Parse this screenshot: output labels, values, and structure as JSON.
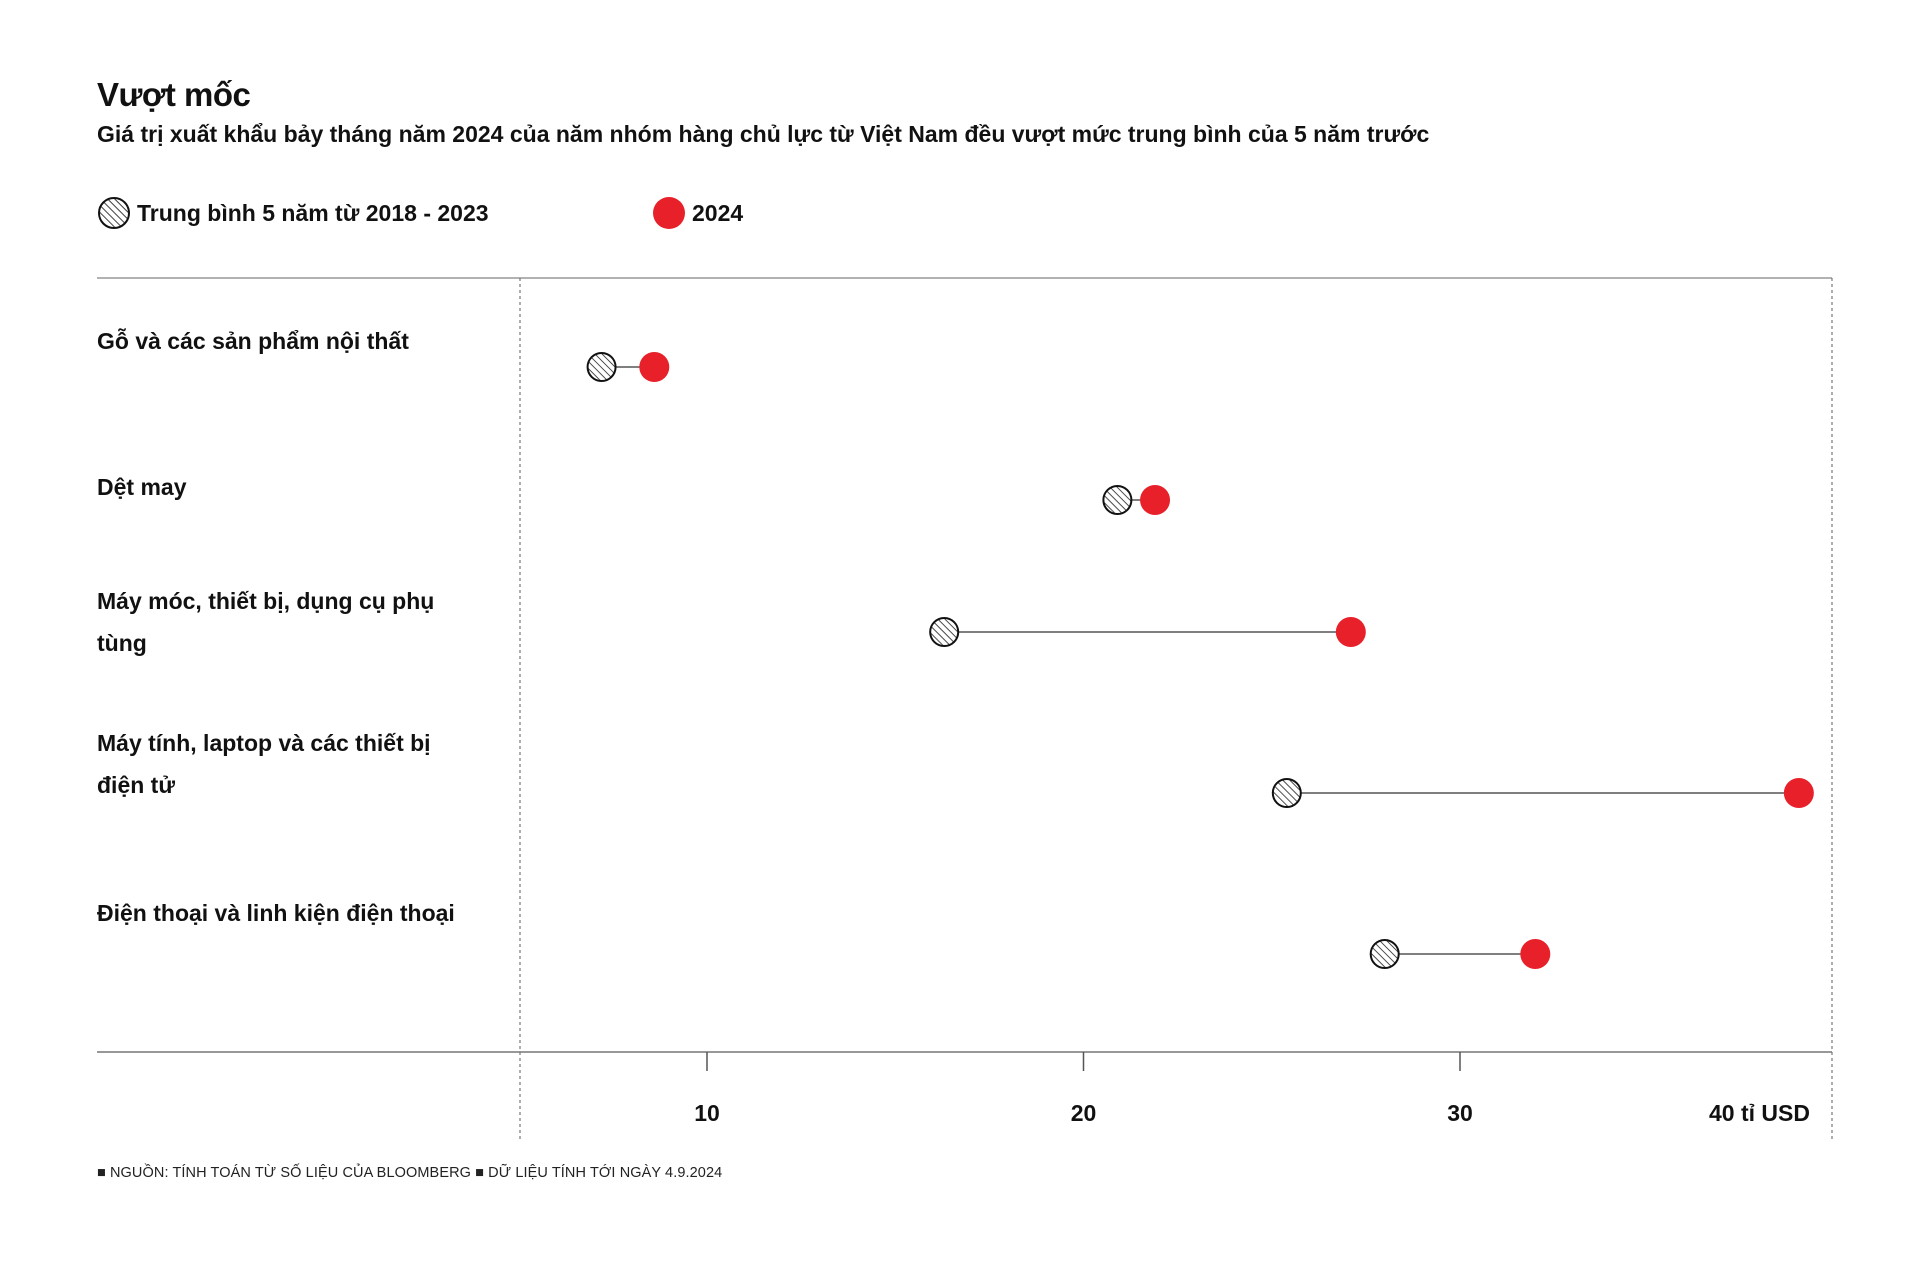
{
  "chart_data": {
    "type": "dumbbell",
    "title": "Vượt mốc",
    "subtitle": "Giá trị xuất khẩu bảy tháng năm 2024 của năm nhóm hàng chủ lực từ Việt Nam đều vượt mức trung bình của 5 năm trước",
    "legend": [
      {
        "name": "Trung bình 5 năm từ 2018 - 2023",
        "style": "hatched"
      },
      {
        "name": "2024",
        "color": "#e8202a"
      }
    ],
    "categories": [
      "Gỗ và các sản phẩm nội thất",
      "Dệt may",
      "Máy móc, thiết bị, dụng cụ phụ tùng",
      "Máy tính, laptop và các thiết bị điện tử",
      "Điện thoại và linh kiện điện thoại"
    ],
    "series": [
      {
        "name": "Trung bình 5 năm từ 2018 - 2023",
        "values": [
          7.2,
          20.9,
          16.3,
          25.4,
          28.0
        ]
      },
      {
        "name": "2024",
        "values": [
          8.6,
          21.9,
          27.1,
          39.0,
          32.0
        ]
      }
    ],
    "x_ticks": [
      10,
      20,
      30,
      40
    ],
    "x_tick_labels": [
      "10",
      "20",
      "30",
      "40 tỉ USD"
    ],
    "xlim": [
      5,
      40
    ],
    "grid": false
  },
  "colors": {
    "accent": "#e8202a",
    "ink": "#111111"
  },
  "footer": "■ NGUỒN: TÍNH TOÁN TỪ SỐ LIỆU CỦA BLOOMBERG ■ DỮ LIỆU TÍNH TỚI NGÀY 4.9.2024"
}
